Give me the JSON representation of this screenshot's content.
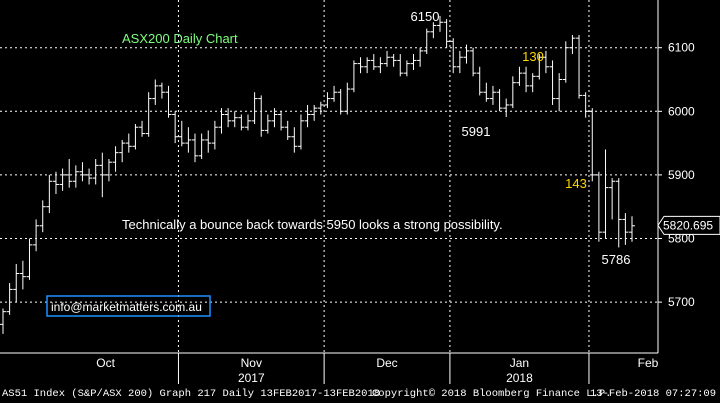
{
  "chart_data": {
    "type": "ohlc",
    "title": "ASX200 Daily Chart",
    "ylim": [
      5620,
      6175
    ],
    "yticks": [
      5700,
      5800,
      5900,
      6000,
      6100
    ],
    "ytick_labels": [
      "5700",
      "5800",
      "5900",
      "6000",
      "6100"
    ],
    "month_labels": [
      "Oct",
      "Nov",
      "Dec",
      "Jan",
      "Feb"
    ],
    "year_labels": [
      "2017",
      "2018"
    ],
    "last_price": "5820.695",
    "annotations": [
      {
        "text": "6150",
        "color": "#ffffff"
      },
      {
        "text": "130",
        "color": "#ffd700"
      },
      {
        "text": "5991",
        "color": "#ffffff"
      },
      {
        "text": "143",
        "color": "#ffd700"
      },
      {
        "text": "5786",
        "color": "#ffffff"
      },
      {
        "text": "Technically a bounce back towards 5950 looks a strong possibility.",
        "color": "#ffffff"
      },
      {
        "text": "info@marketmatters.com.au",
        "color": "#ffffff"
      }
    ],
    "grid": true,
    "colors": {
      "bars": "#ffffff",
      "grid": "#ffffff",
      "axis": "#ffffff",
      "title": "#7fff7f",
      "highlight": "#ffd700",
      "email_border": "#1e90ff",
      "background": "#000000"
    },
    "bars": [
      {
        "x": "Sep-25",
        "open": 5665,
        "high": 5690,
        "low": 5650,
        "close": 5685
      },
      {
        "x": "Sep-26",
        "open": 5685,
        "high": 5730,
        "low": 5680,
        "close": 5720
      },
      {
        "x": "Sep-27",
        "open": 5720,
        "high": 5760,
        "low": 5700,
        "close": 5745
      },
      {
        "x": "Sep-28",
        "open": 5745,
        "high": 5765,
        "low": 5720,
        "close": 5740
      },
      {
        "x": "Sep-29",
        "open": 5740,
        "high": 5800,
        "low": 5735,
        "close": 5790
      },
      {
        "x": "Oct-02",
        "open": 5790,
        "high": 5830,
        "low": 5780,
        "close": 5820
      },
      {
        "x": "Oct-03",
        "open": 5820,
        "high": 5860,
        "low": 5810,
        "close": 5850
      },
      {
        "x": "Oct-04",
        "open": 5850,
        "high": 5900,
        "low": 5840,
        "close": 5890
      },
      {
        "x": "Oct-05",
        "open": 5890,
        "high": 5905,
        "low": 5870,
        "close": 5885
      },
      {
        "x": "Oct-06",
        "open": 5885,
        "high": 5910,
        "low": 5875,
        "close": 5900
      },
      {
        "x": "Oct-09",
        "open": 5900,
        "high": 5925,
        "low": 5880,
        "close": 5890
      },
      {
        "x": "Oct-10",
        "open": 5890,
        "high": 5915,
        "low": 5880,
        "close": 5905
      },
      {
        "x": "Oct-11",
        "open": 5905,
        "high": 5920,
        "low": 5890,
        "close": 5900
      },
      {
        "x": "Oct-12",
        "open": 5900,
        "high": 5910,
        "low": 5885,
        "close": 5895
      },
      {
        "x": "Oct-13",
        "open": 5895,
        "high": 5925,
        "low": 5885,
        "close": 5915
      },
      {
        "x": "Oct-16",
        "open": 5915,
        "high": 5935,
        "low": 5865,
        "close": 5900
      },
      {
        "x": "Oct-17",
        "open": 5900,
        "high": 5925,
        "low": 5890,
        "close": 5920
      },
      {
        "x": "Oct-18",
        "open": 5920,
        "high": 5945,
        "low": 5905,
        "close": 5935
      },
      {
        "x": "Oct-19",
        "open": 5935,
        "high": 5955,
        "low": 5920,
        "close": 5950
      },
      {
        "x": "Oct-20",
        "open": 5950,
        "high": 5965,
        "low": 5935,
        "close": 5945
      },
      {
        "x": "Oct-23",
        "open": 5945,
        "high": 5980,
        "low": 5940,
        "close": 5975
      },
      {
        "x": "Oct-24",
        "open": 5975,
        "high": 5985,
        "low": 5960,
        "close": 5965
      },
      {
        "x": "Oct-25",
        "open": 5965,
        "high": 6030,
        "low": 5960,
        "close": 6020
      },
      {
        "x": "Oct-26",
        "open": 6020,
        "high": 6050,
        "low": 6010,
        "close": 6040
      },
      {
        "x": "Oct-27",
        "open": 6040,
        "high": 6045,
        "low": 6020,
        "close": 6030
      },
      {
        "x": "Oct-30",
        "open": 6030,
        "high": 6040,
        "low": 5990,
        "close": 5995
      },
      {
        "x": "Oct-31",
        "open": 5995,
        "high": 6000,
        "low": 5950,
        "close": 5960
      },
      {
        "x": "Nov-01",
        "open": 5960,
        "high": 5985,
        "low": 5945,
        "close": 5950
      },
      {
        "x": "Nov-02",
        "open": 5950,
        "high": 5975,
        "low": 5935,
        "close": 5955
      },
      {
        "x": "Nov-03",
        "open": 5955,
        "high": 5965,
        "low": 5920,
        "close": 5930
      },
      {
        "x": "Nov-06",
        "open": 5930,
        "high": 5965,
        "low": 5925,
        "close": 5955
      },
      {
        "x": "Nov-07",
        "open": 5955,
        "high": 5970,
        "low": 5935,
        "close": 5950
      },
      {
        "x": "Nov-08",
        "open": 5950,
        "high": 5985,
        "low": 5940,
        "close": 5975
      },
      {
        "x": "Nov-09",
        "open": 5975,
        "high": 6005,
        "low": 5965,
        "close": 5995
      },
      {
        "x": "Nov-10",
        "open": 5995,
        "high": 6005,
        "low": 5975,
        "close": 5985
      },
      {
        "x": "Nov-13",
        "open": 5985,
        "high": 6000,
        "low": 5975,
        "close": 5990
      },
      {
        "x": "Nov-14",
        "open": 5990,
        "high": 5995,
        "low": 5970,
        "close": 5975
      },
      {
        "x": "Nov-15",
        "open": 5975,
        "high": 5995,
        "low": 5970,
        "close": 5985
      },
      {
        "x": "Nov-16",
        "open": 5985,
        "high": 6030,
        "low": 5980,
        "close": 6020
      },
      {
        "x": "Nov-17",
        "open": 6020,
        "high": 6025,
        "low": 5960,
        "close": 5970
      },
      {
        "x": "Nov-20",
        "open": 5970,
        "high": 5995,
        "low": 5965,
        "close": 5985
      },
      {
        "x": "Nov-21",
        "open": 5985,
        "high": 6005,
        "low": 5975,
        "close": 5995
      },
      {
        "x": "Nov-22",
        "open": 5995,
        "high": 6000,
        "low": 5970,
        "close": 5975
      },
      {
        "x": "Nov-23",
        "open": 5975,
        "high": 5985,
        "low": 5955,
        "close": 5960
      },
      {
        "x": "Nov-24",
        "open": 5960,
        "high": 5975,
        "low": 5935,
        "close": 5945
      },
      {
        "x": "Nov-27",
        "open": 5945,
        "high": 5995,
        "low": 5940,
        "close": 5985
      },
      {
        "x": "Nov-28",
        "open": 5985,
        "high": 6010,
        "low": 5975,
        "close": 5995
      },
      {
        "x": "Nov-29",
        "open": 5995,
        "high": 6010,
        "low": 5985,
        "close": 6005
      },
      {
        "x": "Nov-30",
        "open": 6005,
        "high": 6015,
        "low": 5995,
        "close": 6010
      },
      {
        "x": "Dec-01",
        "open": 6010,
        "high": 6030,
        "low": 6005,
        "close": 6020
      },
      {
        "x": "Dec-04",
        "open": 6020,
        "high": 6040,
        "low": 6015,
        "close": 6030
      },
      {
        "x": "Dec-05",
        "open": 6030,
        "high": 6035,
        "low": 5995,
        "close": 6000
      },
      {
        "x": "Dec-06",
        "open": 6000,
        "high": 6045,
        "low": 5995,
        "close": 6035
      },
      {
        "x": "Dec-07",
        "open": 6035,
        "high": 6080,
        "low": 6030,
        "close": 6075
      },
      {
        "x": "Dec-08",
        "open": 6075,
        "high": 6085,
        "low": 6060,
        "close": 6070
      },
      {
        "x": "Dec-11",
        "open": 6070,
        "high": 6085,
        "low": 6060,
        "close": 6080
      },
      {
        "x": "Dec-12",
        "open": 6080,
        "high": 6090,
        "low": 6065,
        "close": 6070
      },
      {
        "x": "Dec-13",
        "open": 6070,
        "high": 6085,
        "low": 6060,
        "close": 6075
      },
      {
        "x": "Dec-14",
        "open": 6075,
        "high": 6095,
        "low": 6070,
        "close": 6085
      },
      {
        "x": "Dec-15",
        "open": 6085,
        "high": 6090,
        "low": 6070,
        "close": 6080
      },
      {
        "x": "Dec-18",
        "open": 6080,
        "high": 6090,
        "low": 6055,
        "close": 6060
      },
      {
        "x": "Dec-19",
        "open": 6060,
        "high": 6080,
        "low": 6055,
        "close": 6075
      },
      {
        "x": "Dec-20",
        "open": 6075,
        "high": 6090,
        "low": 6065,
        "close": 6080
      },
      {
        "x": "Dec-21",
        "open": 6080,
        "high": 6100,
        "low": 6070,
        "close": 6095
      },
      {
        "x": "Dec-22",
        "open": 6095,
        "high": 6130,
        "low": 6090,
        "close": 6125
      },
      {
        "x": "Dec-27",
        "open": 6125,
        "high": 6140,
        "low": 6115,
        "close": 6135
      },
      {
        "x": "Dec-28",
        "open": 6135,
        "high": 6150,
        "low": 6125,
        "close": 6140
      },
      {
        "x": "Dec-29",
        "open": 6140,
        "high": 6145,
        "low": 6100,
        "close": 6110
      },
      {
        "x": "Jan-02",
        "open": 6110,
        "high": 6115,
        "low": 6060,
        "close": 6070
      },
      {
        "x": "Jan-03",
        "open": 6070,
        "high": 6095,
        "low": 6060,
        "close": 6085
      },
      {
        "x": "Jan-04",
        "open": 6085,
        "high": 6105,
        "low": 6075,
        "close": 6095
      },
      {
        "x": "Jan-05",
        "open": 6095,
        "high": 6100,
        "low": 6055,
        "close": 6060
      },
      {
        "x": "Jan-08",
        "open": 6060,
        "high": 6070,
        "low": 6025,
        "close": 6030
      },
      {
        "x": "Jan-09",
        "open": 6030,
        "high": 6045,
        "low": 6015,
        "close": 6020
      },
      {
        "x": "Jan-10",
        "open": 6020,
        "high": 6040,
        "low": 6010,
        "close": 6030
      },
      {
        "x": "Jan-11",
        "open": 6030,
        "high": 6035,
        "low": 6000,
        "close": 6005
      },
      {
        "x": "Jan-12",
        "open": 6005,
        "high": 6020,
        "low": 5991,
        "close": 6010
      },
      {
        "x": "Jan-15",
        "open": 6010,
        "high": 6055,
        "low": 6005,
        "close": 6045
      },
      {
        "x": "Jan-16",
        "open": 6045,
        "high": 6070,
        "low": 6040,
        "close": 6060
      },
      {
        "x": "Jan-17",
        "open": 6060,
        "high": 6070,
        "low": 6030,
        "close": 6040
      },
      {
        "x": "Jan-18",
        "open": 6040,
        "high": 6060,
        "low": 6030,
        "close": 6055
      },
      {
        "x": "Jan-19",
        "open": 6055,
        "high": 6090,
        "low": 6050,
        "close": 6085
      },
      {
        "x": "Jan-22",
        "open": 6085,
        "high": 6095,
        "low": 6060,
        "close": 6070
      },
      {
        "x": "Jan-23",
        "open": 6070,
        "high": 6080,
        "low": 6010,
        "close": 6020
      },
      {
        "x": "Jan-24",
        "open": 6020,
        "high": 6060,
        "low": 6000,
        "close": 6050
      },
      {
        "x": "Jan-25",
        "open": 6050,
        "high": 6110,
        "low": 6045,
        "close": 6100
      },
      {
        "x": "Jan-29",
        "open": 6100,
        "high": 6120,
        "low": 6090,
        "close": 6115
      },
      {
        "x": "Jan-30",
        "open": 6115,
        "high": 6120,
        "low": 6020,
        "close": 6025
      },
      {
        "x": "Jan-31",
        "open": 6025,
        "high": 6030,
        "low": 5990,
        "close": 6000
      },
      {
        "x": "Feb-01",
        "open": 6000,
        "high": 6005,
        "low": 5890,
        "close": 5900
      },
      {
        "x": "Feb-02",
        "open": 5900,
        "high": 5905,
        "low": 5795,
        "close": 5810
      },
      {
        "x": "Feb-05",
        "open": 5810,
        "high": 5940,
        "low": 5800,
        "close": 5880
      },
      {
        "x": "Feb-06",
        "open": 5880,
        "high": 5895,
        "low": 5830,
        "close": 5890
      },
      {
        "x": "Feb-07",
        "open": 5890,
        "high": 5895,
        "low": 5786,
        "close": 5830
      },
      {
        "x": "Feb-08",
        "open": 5830,
        "high": 5840,
        "low": 5790,
        "close": 5810
      },
      {
        "x": "Feb-09",
        "open": 5810,
        "high": 5835,
        "low": 5795,
        "close": 5820
      }
    ]
  },
  "footer": {
    "left": "AS51 Index (S&P/ASX 200) Graph 217  Daily 13FEB2017-13FEB2018",
    "copyright": "Copyright© 2018 Bloomberg Finance L.P.",
    "timestamp": "13-Feb-2018 07:27:09"
  }
}
